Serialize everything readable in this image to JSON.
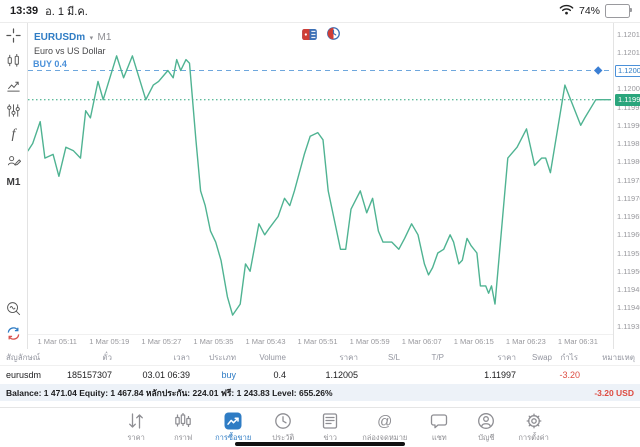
{
  "status_bar": {
    "time": "13:39",
    "date": "อ. 1 มี.ค.",
    "battery": "74%"
  },
  "chart_header": {
    "symbol": "EURUSDm",
    "caret": "▾",
    "timeframe": "M1",
    "description": "Euro vs US Dollar"
  },
  "sidebar": {
    "timeframe_label": "M1",
    "objects_f_label": "f"
  },
  "chart": {
    "buy_position_label": "BUY 0.4",
    "buy_price_tag": "1.12005",
    "current_price_tag": "1.11997"
  },
  "chart_data": {
    "type": "line",
    "title": "EURUSDm M1 — Euro vs US Dollar",
    "line_color": "#4fb392",
    "buy_line_color": "#6ea7dd",
    "current_line_color": "#2aa57c",
    "ylim": [
      1.11935,
      1.12015
    ],
    "y_ticks": [
      "1.12015",
      "1.12010",
      "1.12005",
      "1.12000",
      "1.11995",
      "1.11990",
      "1.11985",
      "1.11980",
      "1.11975",
      "1.11970",
      "1.11965",
      "1.11960",
      "1.11955",
      "1.11950",
      "1.11945",
      "1.11940",
      "1.11935"
    ],
    "x_ticks": [
      "1 Mar 05:11",
      "1 Mar 05:19",
      "1 Mar 05:27",
      "1 Mar 05:35",
      "1 Mar 05:43",
      "1 Mar 05:51",
      "1 Mar 05:59",
      "1 Mar 06:07",
      "1 Mar 06:15",
      "1 Mar 06:23",
      "1 Mar 06:31"
    ],
    "x_tick_pcts": [
      5.0,
      13.9,
      22.8,
      31.7,
      40.6,
      49.5,
      58.4,
      67.3,
      76.2,
      85.1,
      94.0
    ],
    "annotations": [
      {
        "name": "buy-order-line",
        "label": "BUY 0.4",
        "price": 1.12005,
        "marker_x_pct": 97.8
      },
      {
        "name": "current-price-line",
        "label": "1.11997",
        "price": 1.11997
      }
    ],
    "series": [
      {
        "name": "EURUSDm bid",
        "points": [
          [
            0.0,
            1.11983
          ],
          [
            0.8,
            1.11985
          ],
          [
            2.1,
            1.11991
          ],
          [
            2.9,
            1.11981
          ],
          [
            4.3,
            1.11982
          ],
          [
            5.3,
            1.11976
          ],
          [
            6.5,
            1.11984
          ],
          [
            7.8,
            1.11983
          ],
          [
            9.0,
            1.11981
          ],
          [
            9.9,
            1.11994
          ],
          [
            10.7,
            1.11992
          ],
          [
            12.0,
            1.12002
          ],
          [
            12.9,
            1.11997
          ],
          [
            15.2,
            1.12009
          ],
          [
            16.4,
            1.12003
          ],
          [
            17.9,
            1.12009
          ],
          [
            20.2,
            1.11997
          ],
          [
            21.5,
            1.12001
          ],
          [
            22.4,
            1.12002
          ],
          [
            24.0,
            1.12005
          ],
          [
            24.9,
            1.12003
          ],
          [
            25.5,
            1.12008
          ],
          [
            26.2,
            1.12005
          ],
          [
            27.1,
            1.12008
          ],
          [
            27.7,
            1.12007
          ],
          [
            28.8,
            1.11986
          ],
          [
            29.6,
            1.11972
          ],
          [
            30.4,
            1.11968
          ],
          [
            31.3,
            1.11961
          ],
          [
            32.2,
            1.11958
          ],
          [
            33.1,
            1.11953
          ],
          [
            34.2,
            1.11943
          ],
          [
            35.1,
            1.11938
          ],
          [
            36.4,
            1.11941
          ],
          [
            37.3,
            1.11952
          ],
          [
            38.1,
            1.1195
          ],
          [
            39.6,
            1.11963
          ],
          [
            40.6,
            1.1196
          ],
          [
            41.5,
            1.11962
          ],
          [
            42.9,
            1.11965
          ],
          [
            44.0,
            1.1197
          ],
          [
            44.9,
            1.11968
          ],
          [
            45.7,
            1.11972
          ],
          [
            47.4,
            1.11982
          ],
          [
            48.4,
            1.11987
          ],
          [
            49.7,
            1.11988
          ],
          [
            50.6,
            1.11986
          ],
          [
            51.5,
            1.11972
          ],
          [
            53.6,
            1.11956
          ],
          [
            54.5,
            1.11956
          ],
          [
            55.4,
            1.11967
          ],
          [
            57.0,
            1.11972
          ],
          [
            58.1,
            1.11966
          ],
          [
            59.1,
            1.1197
          ],
          [
            60.1,
            1.11961
          ],
          [
            60.9,
            1.11958
          ],
          [
            62.4,
            1.11958
          ],
          [
            63.6,
            1.11956
          ],
          [
            64.6,
            1.11959
          ],
          [
            65.8,
            1.11963
          ],
          [
            66.9,
            1.1196
          ],
          [
            68.0,
            1.11952
          ],
          [
            68.7,
            1.11949
          ],
          [
            69.4,
            1.11951
          ],
          [
            70.3,
            1.11955
          ],
          [
            71.3,
            1.11956
          ],
          [
            72.4,
            1.1196
          ],
          [
            73.0,
            1.11958
          ],
          [
            73.9,
            1.11952
          ],
          [
            74.5,
            1.11953
          ],
          [
            75.3,
            1.11959
          ],
          [
            76.0,
            1.11957
          ],
          [
            77.0,
            1.11955
          ],
          [
            77.6,
            1.11946
          ],
          [
            78.5,
            1.11946
          ],
          [
            79.0,
            1.11944
          ],
          [
            79.5,
            1.11946
          ],
          [
            80.1,
            1.11941
          ],
          [
            82.3,
            1.11981
          ],
          [
            83.9,
            1.11984
          ],
          [
            85.5,
            1.11989
          ],
          [
            86.9,
            1.11979
          ],
          [
            88.1,
            1.11981
          ],
          [
            88.8,
            1.11981
          ],
          [
            89.6,
            1.11977
          ],
          [
            92.1,
            1.12001
          ],
          [
            94.8,
            1.1199
          ],
          [
            95.5,
            1.11992
          ],
          [
            97.4,
            1.11997
          ],
          [
            100.0,
            1.11997
          ]
        ]
      }
    ]
  },
  "positions_table": {
    "headers": [
      "สัญลักษณ์",
      "ตั๋ว",
      "เวลา",
      "ประเภท",
      "Volume",
      "ราคา",
      "S/L",
      "T/P",
      "ราคา",
      "Swap",
      "กำไร",
      "หมายเหตุ"
    ],
    "rows": [
      [
        "eurusdm",
        "185157307",
        "03.01 06:39",
        "buy",
        "0.4",
        "1.12005",
        "",
        "",
        "1.11997",
        "",
        "-3.20",
        ""
      ]
    ]
  },
  "balance_bar": {
    "summary": "Balance: 1 471.04 Equity: 1 467.84 หลักประกัน: 224.01 ฟรี: 1 243.83 Level: 655.26%",
    "profit": "-3.20  USD"
  },
  "nav_bar": {
    "items": [
      {
        "label": "ราคา"
      },
      {
        "label": "กราฟ"
      },
      {
        "label": "การซื้อขาย",
        "active": true
      },
      {
        "label": "ประวัติ"
      },
      {
        "label": "ข่าว"
      },
      {
        "label": "กล่องจดหมาย"
      },
      {
        "label": "แชท"
      },
      {
        "label": "บัญชี"
      },
      {
        "label": "การตั้งค่า"
      }
    ]
  },
  "colors": {
    "accent_blue": "#2f7cc4",
    "line_teal": "#4fb392",
    "profit_red": "#dd4b41",
    "current_tag_green": "#2aa57c"
  }
}
